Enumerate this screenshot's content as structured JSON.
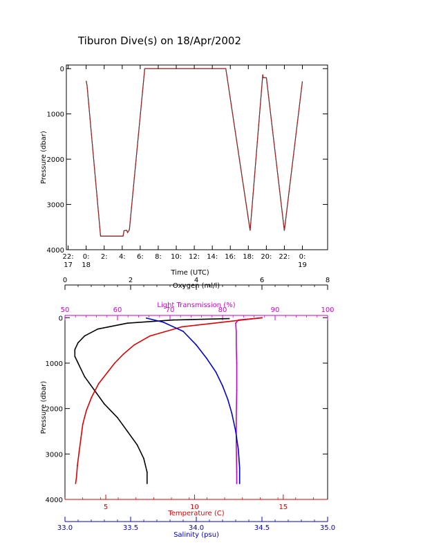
{
  "title": "Tiburon Dive(s) on 18/Apr/2002",
  "colors": {
    "black": "#000000",
    "red": "#dd0000",
    "blue": "#0000cc",
    "magenta": "#cc00cc",
    "trace_red": "#cc2222"
  },
  "chart_data": [
    {
      "type": "line",
      "title": "Tiburon Dive(s) on 18/Apr/2002",
      "xlabel": "Time (UTC)",
      "ylabel": "Pressure (dbar)",
      "x_unit": "hours since 18/Apr/2002 00:00 UTC",
      "xlim": [
        -2.2,
        26.8
      ],
      "ylim": [
        4000,
        -80
      ],
      "y_inverted": true,
      "x_ticks": [
        {
          "x": -2,
          "line1": "22:",
          "line2": "17"
        },
        {
          "x": 0,
          "line1": "0:",
          "line2": "18"
        },
        {
          "x": 2,
          "line1": "2:",
          "line2": ""
        },
        {
          "x": 4,
          "line1": "4:",
          "line2": ""
        },
        {
          "x": 6,
          "line1": "6:",
          "line2": ""
        },
        {
          "x": 8,
          "line1": "8:",
          "line2": ""
        },
        {
          "x": 10,
          "line1": "10:",
          "line2": ""
        },
        {
          "x": 12,
          "line1": "12:",
          "line2": ""
        },
        {
          "x": 14,
          "line1": "14:",
          "line2": ""
        },
        {
          "x": 16,
          "line1": "16:",
          "line2": ""
        },
        {
          "x": 18,
          "line1": "18:",
          "line2": ""
        },
        {
          "x": 20,
          "line1": "20:",
          "line2": ""
        },
        {
          "x": 22,
          "line1": "22:",
          "line2": ""
        },
        {
          "x": 24,
          "line1": "0:",
          "line2": "19"
        }
      ],
      "y_ticks": [
        {
          "y": 0,
          "label": "0"
        },
        {
          "y": 1000,
          "label": "1000"
        },
        {
          "y": 2000,
          "label": "2000"
        },
        {
          "y": 3000,
          "label": "3000"
        },
        {
          "y": 4000,
          "label": "4000"
        }
      ],
      "series": [
        {
          "color": "#cc2222",
          "x": [
            0.0,
            0.1,
            1.6,
            2.0,
            4.1,
            4.2,
            4.5,
            4.6,
            4.8,
            6.5,
            15.5,
            18.2,
            19.6,
            19.65,
            20.0,
            22.0,
            24.0
          ],
          "y": [
            270,
            380,
            3700,
            3700,
            3700,
            3580,
            3570,
            3620,
            3560,
            0,
            0,
            3580,
            130,
            200,
            200,
            3580,
            280
          ]
        }
      ]
    },
    {
      "type": "line",
      "title": "",
      "ylabel": "Pressure (dbar)",
      "ylim": [
        4000,
        -50
      ],
      "y_inverted": true,
      "y_ticks": [
        {
          "y": 0,
          "label": "0"
        },
        {
          "y": 1000,
          "label": "1000"
        },
        {
          "y": 2000,
          "label": "2000"
        },
        {
          "y": 3000,
          "label": "3000"
        },
        {
          "y": 4000,
          "label": "4000"
        }
      ],
      "axes": [
        {
          "key": "oxygen",
          "label": "Oxygen (ml/l)",
          "position": "top-outer",
          "color": "#000000",
          "range": [
            0,
            8
          ],
          "ticks": [
            {
              "v": 0,
              "label": "0"
            },
            {
              "v": 2,
              "label": "2"
            },
            {
              "v": 4,
              "label": "4"
            },
            {
              "v": 6,
              "label": "6"
            },
            {
              "v": 8,
              "label": "8"
            }
          ]
        },
        {
          "key": "light",
          "label": "Light Transmission (%)",
          "position": "top-inner",
          "color": "#cc00cc",
          "range": [
            50,
            100
          ],
          "ticks": [
            {
              "v": 50,
              "label": "50"
            },
            {
              "v": 60,
              "label": "60"
            },
            {
              "v": 70,
              "label": "70"
            },
            {
              "v": 80,
              "label": "80"
            },
            {
              "v": 90,
              "label": "90"
            },
            {
              "v": 100,
              "label": "100"
            }
          ]
        },
        {
          "key": "temperature",
          "label": "Temperature (C)",
          "position": "bottom-inner",
          "color": "#dd0000",
          "range": [
            2.7,
            17.5
          ],
          "ticks": [
            {
              "v": 5,
              "label": "5"
            },
            {
              "v": 10,
              "label": "10"
            },
            {
              "v": 15,
              "label": "15"
            }
          ]
        },
        {
          "key": "salinity",
          "label": "Salinity (psu)",
          "position": "bottom-outer",
          "color": "#0000cc",
          "range": [
            33.0,
            35.0
          ],
          "ticks": [
            {
              "v": 33.0,
              "label": "33.0"
            },
            {
              "v": 33.5,
              "label": "33.5"
            },
            {
              "v": 34.0,
              "label": "34.0"
            },
            {
              "v": 34.5,
              "label": "34.5"
            },
            {
              "v": 35.0,
              "label": "35.0"
            }
          ]
        }
      ],
      "series": [
        {
          "axis": "oxygen",
          "color": "#000000",
          "v": [
            5.0,
            3.3,
            1.9,
            1.0,
            0.6,
            0.4,
            0.3,
            0.3,
            0.4,
            0.6,
            0.9,
            1.2,
            1.6,
            1.9,
            2.2,
            2.4,
            2.5,
            2.5
          ],
          "y": [
            20,
            50,
            120,
            250,
            400,
            550,
            700,
            850,
            1000,
            1300,
            1600,
            1900,
            2200,
            2500,
            2800,
            3100,
            3400,
            3650
          ]
        },
        {
          "axis": "light",
          "color": "#cc00cc",
          "v": [
            87.5,
            83,
            82.5,
            82.6,
            82.6,
            82.7,
            82.7,
            82.6,
            82.6,
            82.7,
            82.7
          ],
          "y": [
            5,
            50,
            120,
            300,
            600,
            1000,
            1600,
            2200,
            2800,
            3400,
            3650
          ]
        },
        {
          "axis": "temperature",
          "color": "#dd0000",
          "v": [
            13.8,
            9.3,
            7.5,
            6.6,
            6.0,
            5.5,
            5.1,
            4.6,
            4.2,
            3.9,
            3.7,
            3.6,
            3.5,
            3.4,
            3.35,
            3.3
          ],
          "y": [
            0,
            200,
            400,
            600,
            800,
            1000,
            1200,
            1450,
            1750,
            2050,
            2350,
            2650,
            2950,
            3250,
            3500,
            3650
          ]
        },
        {
          "axis": "salinity",
          "color": "#0000cc",
          "v": [
            33.62,
            33.75,
            33.9,
            34.0,
            34.08,
            34.15,
            34.2,
            34.24,
            34.27,
            34.3,
            34.32,
            34.33,
            34.33
          ],
          "y": [
            10,
            100,
            300,
            600,
            900,
            1200,
            1500,
            1800,
            2100,
            2500,
            2900,
            3300,
            3650
          ]
        }
      ]
    }
  ]
}
